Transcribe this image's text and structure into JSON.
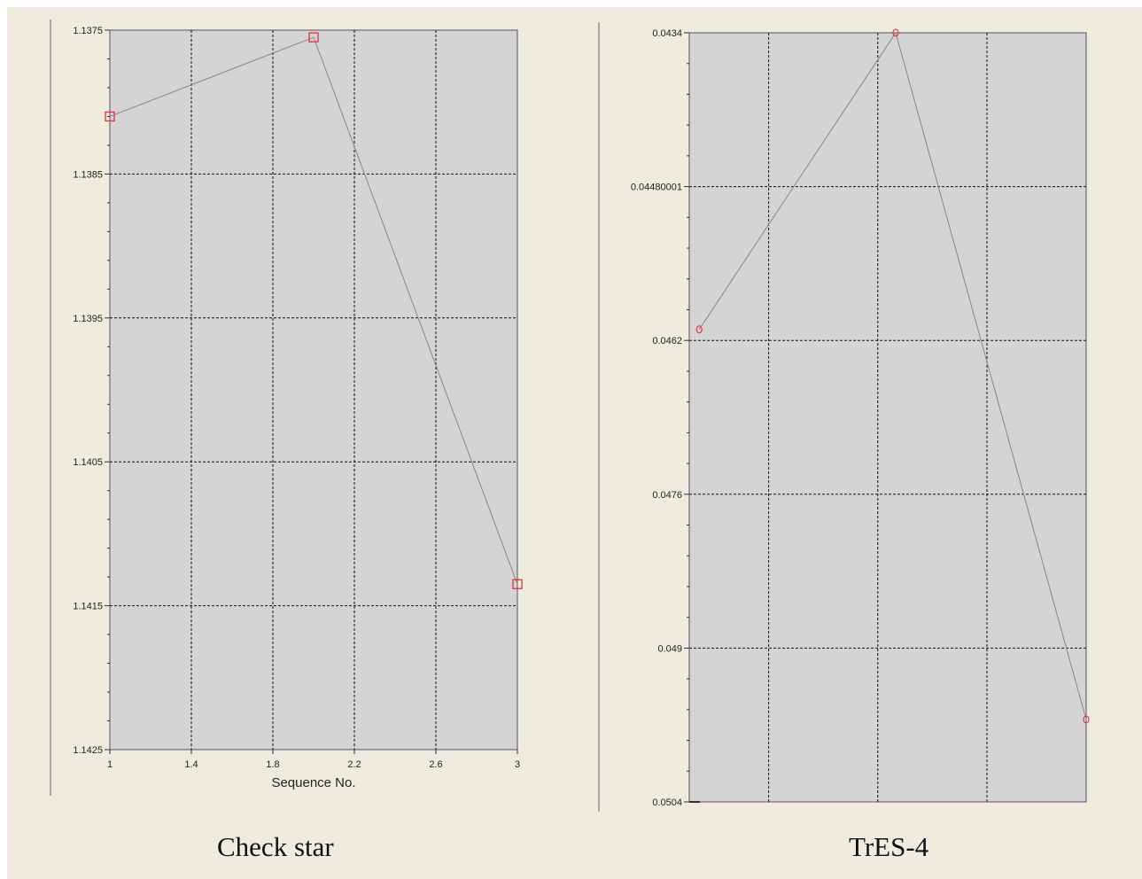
{
  "colors": {
    "background": "#efebde",
    "plot_area": "#d4d4d4",
    "line": "#888888",
    "marker": "#e0303a",
    "grid": "#111111"
  },
  "chart_data": [
    {
      "type": "line",
      "caption": "Check star",
      "xlabel": "Sequence No.",
      "ylabel": "",
      "xlim": [
        1,
        3
      ],
      "ylim": [
        1.1425,
        1.1375
      ],
      "y_inverted": true,
      "x_ticks": [
        "1",
        "1.4",
        "1.8",
        "2.2",
        "2.6",
        "3"
      ],
      "x_tick_values": [
        1,
        1.4,
        1.8,
        2.2,
        2.6,
        3
      ],
      "y_ticks": [
        "1.1375",
        "1.1385",
        "1.1395",
        "1.1405",
        "1.1415",
        "1.1425"
      ],
      "y_tick_values": [
        1.1375,
        1.1385,
        1.1395,
        1.1405,
        1.1415,
        1.1425
      ],
      "grid": true,
      "marker": "square",
      "series": [
        {
          "x": [
            1,
            2,
            3
          ],
          "y": [
            1.1381,
            1.13755,
            1.14135
          ]
        }
      ]
    },
    {
      "type": "line",
      "caption": "TrES-4",
      "xlabel": "",
      "ylabel": "",
      "xlim": [
        1,
        3
      ],
      "ylim": [
        0.0504,
        0.0434
      ],
      "y_inverted": true,
      "x_ticks": [],
      "grid_x_values": [
        1.4,
        1.95,
        2.5
      ],
      "y_ticks": [
        "0.0434",
        "0.04480001",
        "0.0462",
        "0.0476",
        "0.049",
        "0.0504"
      ],
      "y_tick_values": [
        0.0434,
        0.0448,
        0.0462,
        0.0476,
        0.049,
        0.0504
      ],
      "grid": true,
      "marker": "circle",
      "series": [
        {
          "x": [
            1.05,
            2.04,
            3
          ],
          "y": [
            0.0461,
            0.0434,
            0.04965
          ]
        }
      ]
    }
  ]
}
